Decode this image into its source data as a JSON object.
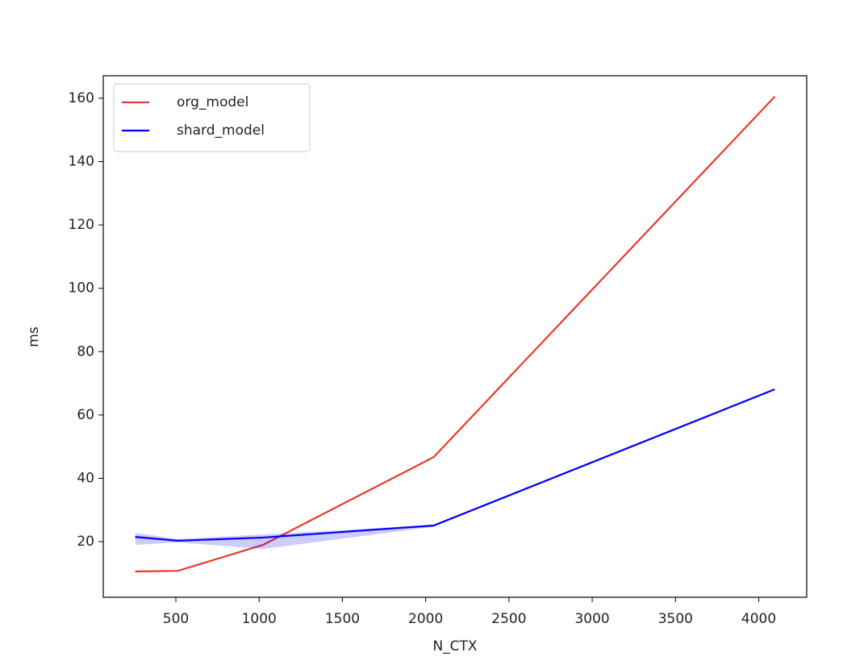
{
  "chart_data": {
    "type": "line",
    "x_label": "N_CTX",
    "y_label": "ms",
    "x": [
      256,
      512,
      1024,
      2048,
      4096
    ],
    "series": [
      {
        "name": "org_model",
        "color": "#e8392f",
        "values": [
          10.6,
          10.8,
          19,
          46.7,
          160.5
        ]
      },
      {
        "name": "shard_model",
        "color": "#0000ff",
        "values": [
          21.5,
          20.3,
          21.3,
          25.1,
          68.1
        ],
        "lower": [
          19,
          19.8,
          17.7,
          24.7,
          67.8
        ],
        "upper": [
          22.8,
          20.8,
          22.3,
          25.3,
          68.4
        ]
      }
    ],
    "xlim": [
      64,
      4288
    ],
    "ylim": [
      2.45,
      167.1
    ],
    "xticks": [
      500,
      1000,
      1500,
      2000,
      2500,
      3000,
      3500,
      4000
    ],
    "yticks": [
      20,
      40,
      60,
      80,
      100,
      120,
      140,
      160
    ],
    "legend": "upper left"
  }
}
